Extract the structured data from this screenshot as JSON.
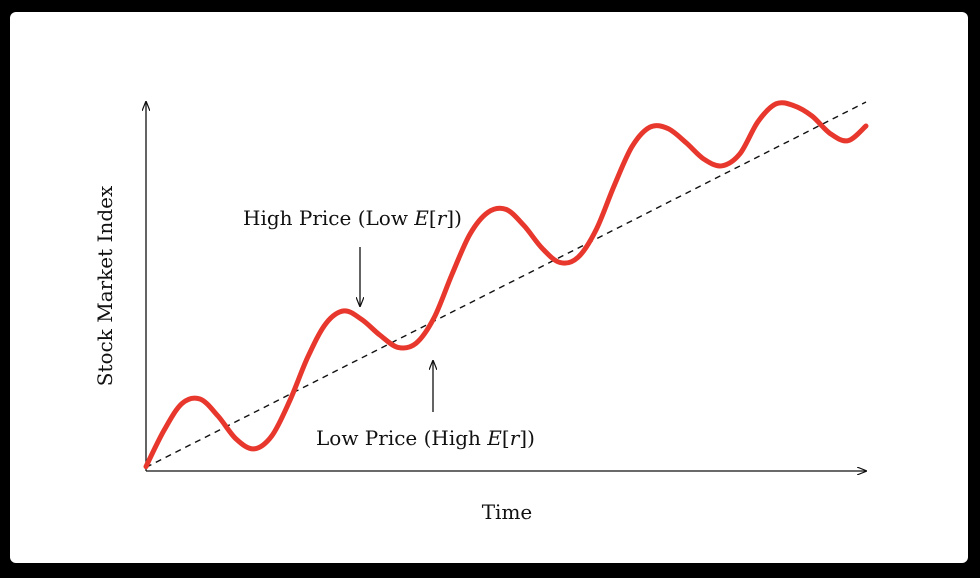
{
  "chart_data": {
    "type": "line",
    "title": "",
    "xlabel": "Time",
    "ylabel": "Stock Market Index",
    "xlim": [
      0,
      10
    ],
    "ylim": [
      0,
      10
    ],
    "grid": false,
    "legend": "none",
    "series": [
      {
        "style": "solid",
        "color": "#e8372c",
        "x": [
          0,
          0.25,
          0.5,
          0.75,
          1.0,
          1.25,
          1.5,
          1.75,
          2.0,
          2.25,
          2.5,
          2.75,
          3.0,
          3.25,
          3.5,
          3.75,
          4.0,
          4.25,
          4.5,
          4.75,
          5.0,
          5.25,
          5.5,
          5.75,
          6.0,
          6.25,
          6.5,
          6.75,
          7.0,
          7.25,
          7.5,
          7.75,
          8.0,
          8.25,
          8.5,
          8.75,
          9.0,
          9.25,
          9.5,
          9.75,
          10.0
        ],
        "y": [
          0.12,
          1.1,
          1.83,
          1.95,
          1.49,
          0.87,
          0.6,
          0.96,
          1.92,
          3.1,
          4.0,
          4.34,
          4.1,
          3.68,
          3.35,
          3.46,
          4.15,
          5.33,
          6.42,
          7.01,
          7.09,
          6.65,
          6.04,
          5.65,
          5.79,
          6.53,
          7.72,
          8.79,
          9.32,
          9.28,
          8.9,
          8.45,
          8.27,
          8.6,
          9.47,
          9.95,
          9.9,
          9.62,
          9.15,
          8.95,
          9.35
        ]
      },
      {
        "style": "dashed",
        "color": "#111111",
        "x": [
          0,
          10
        ],
        "y": [
          0.1,
          10.0
        ]
      }
    ],
    "annotations": [
      {
        "text_before": "High Price (Low ",
        "text_italic": "E",
        "text_mid": "[",
        "text_italic2": "r",
        "text_after": "])",
        "arrow": "down",
        "x": 3.0,
        "y": 4.34
      },
      {
        "text_before": "Low Price (High ",
        "text_italic": "E",
        "text_mid": "[",
        "text_italic2": "r",
        "text_after": "])",
        "arrow": "up",
        "x": 4.0,
        "y": 3.1
      }
    ]
  }
}
